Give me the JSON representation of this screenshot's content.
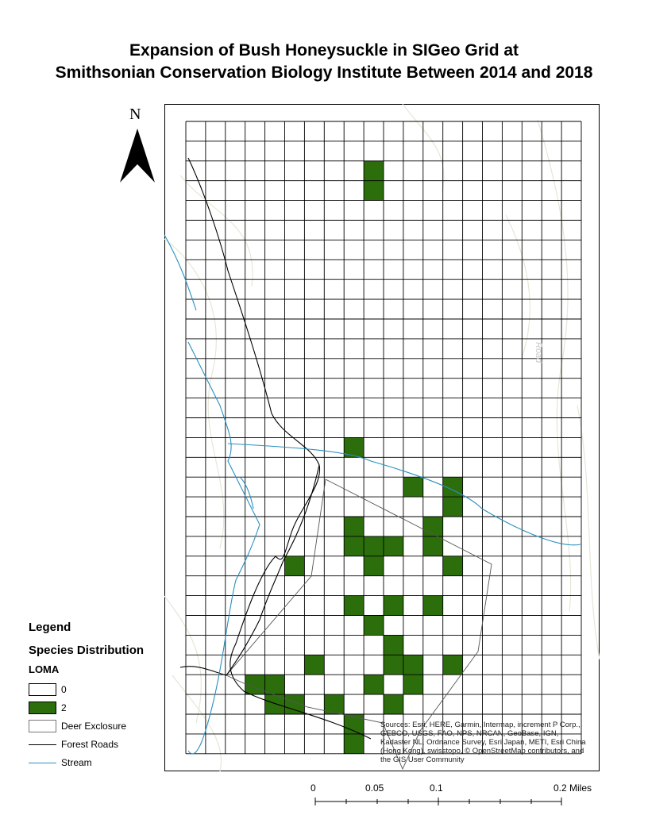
{
  "title_line1": "Expansion of Bush Honeysuckle in SIGeo Grid at",
  "title_line2": "Smithsonian Conservation Biology Institute Between 2014 and 2018",
  "north_label": "N",
  "legend": {
    "title": "Legend",
    "subtitle": "Species Distribution",
    "layer": "LOMA",
    "items": [
      {
        "label": "0",
        "fill": "#ffffff",
        "symbol": "box"
      },
      {
        "label": "2",
        "fill": "#2d6e0c",
        "symbol": "box"
      },
      {
        "label": "Deer Exclosure",
        "fill": "#ffffff",
        "symbol": "box-thin"
      },
      {
        "label": "Forest Roads",
        "color": "#000000",
        "symbol": "line"
      },
      {
        "label": "Stream",
        "color": "#2a8fbf",
        "symbol": "line"
      }
    ]
  },
  "grid": {
    "columns": 20,
    "rows": 32,
    "occupied_fill": "#2d6e0c",
    "occupied_cells": [
      [
        2,
        9
      ],
      [
        3,
        9
      ],
      [
        16,
        8
      ],
      [
        18,
        11
      ],
      [
        18,
        13
      ],
      [
        19,
        13
      ],
      [
        20,
        8
      ],
      [
        20,
        12
      ],
      [
        21,
        8
      ],
      [
        21,
        9
      ],
      [
        21,
        10
      ],
      [
        21,
        12
      ],
      [
        22,
        5
      ],
      [
        22,
        9
      ],
      [
        22,
        13
      ],
      [
        24,
        8
      ],
      [
        24,
        10
      ],
      [
        24,
        12
      ],
      [
        25,
        9
      ],
      [
        26,
        10
      ],
      [
        27,
        6
      ],
      [
        27,
        10
      ],
      [
        27,
        11
      ],
      [
        27,
        13
      ],
      [
        28,
        3
      ],
      [
        28,
        4
      ],
      [
        28,
        9
      ],
      [
        28,
        11
      ],
      [
        29,
        4
      ],
      [
        29,
        5
      ],
      [
        29,
        7
      ],
      [
        29,
        10
      ],
      [
        30,
        8
      ],
      [
        31,
        8
      ]
    ]
  },
  "road_color": "#000000",
  "stream_color": "#2a8fbf",
  "scale": {
    "labels": [
      "0",
      "0.05",
      "0.1",
      "0.2 Miles"
    ]
  },
  "attribution": "Sources: Esri, HERE, Garmin, Intermap, increment P Corp., GEBCO, USGS, FAO, NPS, NRCAN, GeoBase, IGN, Kadaster NL, Ordnance Survey, Esri Japan, METI, Esri China (Hong Kong), swisstopo, © OpenStreetMap contributors, and the GIS User Community",
  "basemap_label": "Road"
}
